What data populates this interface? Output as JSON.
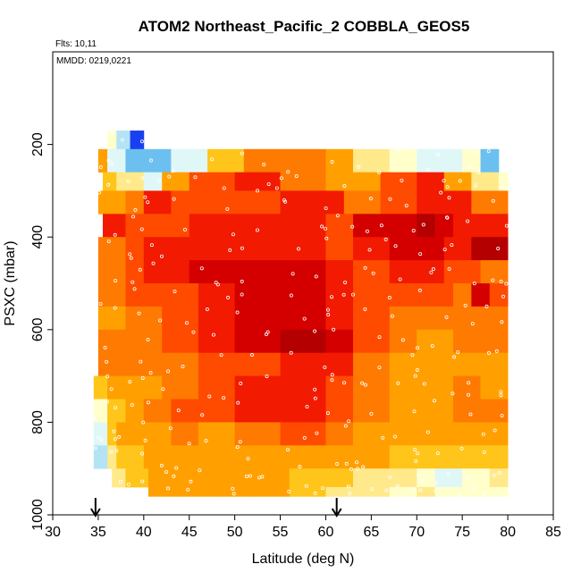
{
  "chart_data": {
    "type": "heatmap",
    "title": "ATOM2 Northeast_Pacific_2 COBBLA_GEOS5",
    "annotations": [
      "Flts: 10,11",
      "MMDD: 0219,0221"
    ],
    "xlabel": "Latitude (deg N)",
    "ylabel": "PSXC (mbar)",
    "xlim": [
      30,
      85
    ],
    "ylim": [
      1000,
      0
    ],
    "xticks": [
      30,
      35,
      40,
      45,
      50,
      55,
      60,
      65,
      70,
      75,
      80,
      85
    ],
    "yticks": [
      200,
      400,
      600,
      800,
      1000
    ],
    "grid": false,
    "markers": [
      34.7,
      61.2
    ],
    "colors": {
      "warm": [
        "#ffffcc",
        "#ffe98a",
        "#ffc51a",
        "#ffa000",
        "#ff7a00",
        "#ff4b00",
        "#f21a00",
        "#d40000",
        "#b40000"
      ],
      "cool": [
        "#e0f7f7",
        "#b3e3f5",
        "#6cc0f0",
        "#2f8fe8",
        "#1a3ff0",
        "#4b00c8"
      ]
    },
    "rows": [
      {
        "p0": 170,
        "p1": 210,
        "cells": [
          [
            36,
            37,
            0
          ],
          [
            37,
            38.5,
            -2
          ],
          [
            38.5,
            40,
            -5
          ]
        ]
      },
      {
        "p0": 210,
        "p1": 260,
        "cells": [
          [
            35,
            36,
            3
          ],
          [
            36,
            38,
            -1
          ],
          [
            38,
            43,
            -3
          ],
          [
            43,
            47,
            -1
          ],
          [
            47,
            51,
            2
          ],
          [
            51,
            55,
            4
          ],
          [
            55,
            60,
            4
          ],
          [
            60,
            63,
            3
          ],
          [
            63,
            67,
            1
          ],
          [
            67,
            70,
            0
          ],
          [
            70,
            75,
            -1
          ],
          [
            75,
            77,
            0
          ],
          [
            77,
            79,
            -3
          ]
        ]
      },
      {
        "p0": 260,
        "p1": 300,
        "cells": [
          [
            35.5,
            37,
            2
          ],
          [
            37,
            40,
            1
          ],
          [
            40,
            42,
            -1
          ],
          [
            42,
            45,
            3
          ],
          [
            45,
            50,
            5
          ],
          [
            50,
            55,
            6
          ],
          [
            55,
            60,
            4
          ],
          [
            60,
            63,
            3
          ],
          [
            63,
            66,
            3
          ],
          [
            66,
            70,
            5
          ],
          [
            70,
            73,
            6
          ],
          [
            73,
            76,
            3
          ],
          [
            76,
            79,
            1
          ],
          [
            79,
            80,
            0
          ]
        ]
      },
      {
        "p0": 300,
        "p1": 350,
        "cells": [
          [
            35,
            38,
            3
          ],
          [
            38,
            40,
            4
          ],
          [
            40,
            43,
            6
          ],
          [
            43,
            48,
            5
          ],
          [
            48,
            52,
            5
          ],
          [
            52,
            55,
            5
          ],
          [
            55,
            60,
            6
          ],
          [
            60,
            62,
            6
          ],
          [
            62,
            66,
            4
          ],
          [
            66,
            70,
            5
          ],
          [
            70,
            73,
            6
          ],
          [
            73,
            76,
            6
          ],
          [
            76,
            80,
            4
          ]
        ]
      },
      {
        "p0": 350,
        "p1": 400,
        "cells": [
          [
            35.5,
            38,
            6
          ],
          [
            38,
            40,
            5
          ],
          [
            40,
            45,
            5
          ],
          [
            45,
            50,
            6
          ],
          [
            50,
            55,
            6
          ],
          [
            55,
            60,
            6
          ],
          [
            60,
            63,
            5
          ],
          [
            63,
            67,
            7
          ],
          [
            67,
            70,
            7
          ],
          [
            70,
            72,
            8
          ],
          [
            72,
            74,
            7
          ],
          [
            74,
            77,
            6
          ],
          [
            77,
            80,
            6
          ]
        ]
      },
      {
        "p0": 400,
        "p1": 450,
        "cells": [
          [
            35,
            38,
            4
          ],
          [
            38,
            40,
            5
          ],
          [
            40,
            45,
            6
          ],
          [
            45,
            50,
            6
          ],
          [
            50,
            55,
            6
          ],
          [
            55,
            60,
            6
          ],
          [
            60,
            63,
            5
          ],
          [
            63,
            67,
            6
          ],
          [
            67,
            70,
            7
          ],
          [
            70,
            73,
            7
          ],
          [
            73,
            76,
            6
          ],
          [
            76,
            80,
            8
          ]
        ]
      },
      {
        "p0": 450,
        "p1": 500,
        "cells": [
          [
            35,
            38,
            4
          ],
          [
            38,
            40,
            5
          ],
          [
            40,
            45,
            6
          ],
          [
            45,
            50,
            7
          ],
          [
            50,
            55,
            7
          ],
          [
            55,
            60,
            7
          ],
          [
            60,
            63,
            6
          ],
          [
            63,
            67,
            5
          ],
          [
            67,
            70,
            6
          ],
          [
            70,
            73,
            6
          ],
          [
            73,
            77,
            5
          ],
          [
            77,
            80,
            4
          ]
        ]
      },
      {
        "p0": 500,
        "p1": 550,
        "cells": [
          [
            35,
            38,
            4
          ],
          [
            38,
            42,
            5
          ],
          [
            42,
            46,
            5
          ],
          [
            46,
            50,
            6
          ],
          [
            50,
            55,
            7
          ],
          [
            55,
            60,
            7
          ],
          [
            60,
            63,
            6
          ],
          [
            63,
            67,
            5
          ],
          [
            67,
            70,
            5
          ],
          [
            70,
            74,
            5
          ],
          [
            74,
            76,
            4
          ],
          [
            76,
            78,
            7
          ],
          [
            78,
            80,
            5
          ]
        ]
      },
      {
        "p0": 550,
        "p1": 600,
        "cells": [
          [
            35,
            38,
            3
          ],
          [
            38,
            42,
            4
          ],
          [
            42,
            46,
            5
          ],
          [
            46,
            50,
            6
          ],
          [
            50,
            55,
            7
          ],
          [
            55,
            60,
            7
          ],
          [
            60,
            63,
            6
          ],
          [
            63,
            67,
            5
          ],
          [
            67,
            70,
            4
          ],
          [
            70,
            74,
            4
          ],
          [
            74,
            80,
            4
          ]
        ]
      },
      {
        "p0": 600,
        "p1": 650,
        "cells": [
          [
            35,
            38,
            4
          ],
          [
            38,
            42,
            4
          ],
          [
            42,
            46,
            5
          ],
          [
            46,
            50,
            6
          ],
          [
            50,
            55,
            7
          ],
          [
            55,
            60,
            8
          ],
          [
            60,
            63,
            7
          ],
          [
            63,
            67,
            5
          ],
          [
            67,
            70,
            4
          ],
          [
            70,
            74,
            3
          ],
          [
            74,
            80,
            4
          ]
        ]
      },
      {
        "p0": 650,
        "p1": 700,
        "cells": [
          [
            35,
            38,
            4
          ],
          [
            38,
            42,
            4
          ],
          [
            42,
            46,
            4
          ],
          [
            46,
            50,
            5
          ],
          [
            50,
            55,
            5
          ],
          [
            55,
            60,
            6
          ],
          [
            60,
            63,
            6
          ],
          [
            63,
            67,
            4
          ],
          [
            67,
            70,
            3
          ],
          [
            70,
            74,
            3
          ],
          [
            74,
            80,
            3
          ]
        ]
      },
      {
        "p0": 700,
        "p1": 750,
        "cells": [
          [
            34.5,
            36,
            2
          ],
          [
            36,
            38,
            3
          ],
          [
            38,
            42,
            3
          ],
          [
            42,
            46,
            4
          ],
          [
            46,
            50,
            5
          ],
          [
            50,
            55,
            6
          ],
          [
            55,
            60,
            6
          ],
          [
            60,
            63,
            5
          ],
          [
            63,
            67,
            4
          ],
          [
            67,
            70,
            3
          ],
          [
            70,
            74,
            3
          ],
          [
            74,
            77,
            4
          ],
          [
            77,
            80,
            3
          ]
        ]
      },
      {
        "p0": 750,
        "p1": 800,
        "cells": [
          [
            34.5,
            36,
            0
          ],
          [
            36,
            38,
            2
          ],
          [
            38,
            40,
            3
          ],
          [
            40,
            43,
            4
          ],
          [
            43,
            46,
            5
          ],
          [
            46,
            50,
            5
          ],
          [
            50,
            55,
            6
          ],
          [
            55,
            60,
            6
          ],
          [
            60,
            63,
            5
          ],
          [
            63,
            67,
            4
          ],
          [
            67,
            70,
            3
          ],
          [
            70,
            74,
            3
          ],
          [
            74,
            77,
            4
          ],
          [
            77,
            80,
            4
          ]
        ]
      },
      {
        "p0": 800,
        "p1": 850,
        "cells": [
          [
            34.5,
            36,
            -1
          ],
          [
            36,
            37,
            2
          ],
          [
            37,
            40,
            3
          ],
          [
            40,
            43,
            3
          ],
          [
            43,
            46,
            4
          ],
          [
            46,
            50,
            3
          ],
          [
            50,
            55,
            4
          ],
          [
            55,
            60,
            5
          ],
          [
            60,
            63,
            4
          ],
          [
            63,
            67,
            3
          ],
          [
            67,
            70,
            3
          ],
          [
            70,
            74,
            3
          ],
          [
            74,
            80,
            3
          ]
        ]
      },
      {
        "p0": 850,
        "p1": 900,
        "cells": [
          [
            34.5,
            36,
            -2
          ],
          [
            36,
            37,
            1
          ],
          [
            37,
            40,
            2
          ],
          [
            40,
            43,
            3
          ],
          [
            43,
            47,
            3
          ],
          [
            47,
            51,
            3
          ],
          [
            51,
            55,
            3
          ],
          [
            55,
            60,
            3
          ],
          [
            60,
            63,
            3
          ],
          [
            63,
            67,
            3
          ],
          [
            67,
            70,
            2
          ],
          [
            70,
            74,
            2
          ],
          [
            74,
            80,
            2
          ]
        ]
      },
      {
        "p0": 900,
        "p1": 940,
        "cells": [
          [
            36.5,
            38,
            1
          ],
          [
            38,
            40.5,
            2
          ],
          [
            40.5,
            44,
            3
          ],
          [
            44,
            48,
            3
          ],
          [
            48,
            52,
            3
          ],
          [
            52,
            56,
            3
          ],
          [
            56,
            60,
            2
          ],
          [
            60,
            63,
            2
          ],
          [
            63,
            67,
            1
          ],
          [
            67,
            70,
            1
          ],
          [
            70,
            72,
            0
          ],
          [
            72,
            75,
            -1
          ],
          [
            75,
            78,
            0
          ],
          [
            78,
            80,
            1
          ]
        ]
      },
      {
        "p0": 940,
        "p1": 960,
        "cells": [
          [
            40.5,
            44,
            3
          ],
          [
            44,
            48,
            3
          ],
          [
            48,
            52,
            3
          ],
          [
            52,
            56,
            3
          ],
          [
            56,
            60,
            2
          ],
          [
            60,
            63,
            1
          ],
          [
            63,
            67,
            1
          ],
          [
            67,
            70,
            0
          ],
          [
            70,
            72,
            1
          ],
          [
            72,
            75,
            0
          ],
          [
            75,
            80,
            0
          ]
        ]
      }
    ]
  }
}
